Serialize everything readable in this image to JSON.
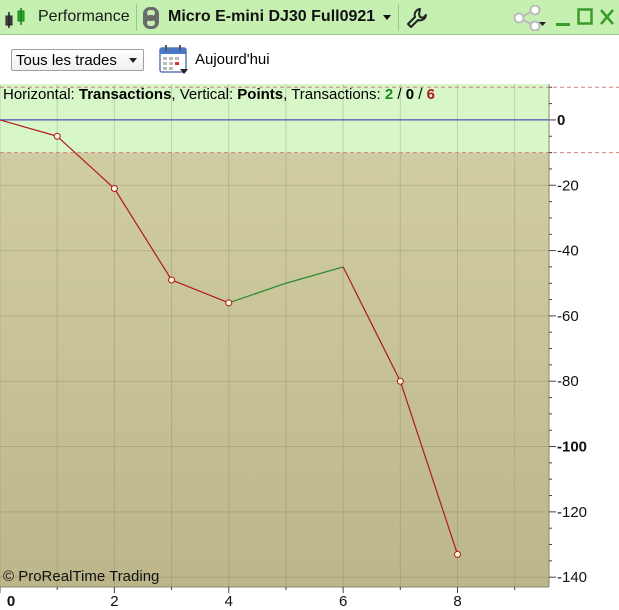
{
  "window": {
    "tab_label": "Performance",
    "instrument": "Micro E-mini DJ30 Full0921",
    "icons": [
      "candlestick-icon",
      "link-icon",
      "wrench-icon",
      "share-icon",
      "minimize-icon",
      "maximize-icon",
      "close-icon"
    ]
  },
  "toolbar": {
    "trade_filter": "Tous les trades",
    "period_label": "Aujourd'hui",
    "calendar_icon": "calendar-icon"
  },
  "header": {
    "horizontal_prefix": "Horizontal: ",
    "horizontal_value": "Transactions",
    "vertical_prefix": ", Vertical: ",
    "vertical_value": "Points",
    "transactions_prefix": ", Transactions: ",
    "wins": "2",
    "sep1": " / ",
    "neutral": "0",
    "sep2": " / ",
    "losses": "6"
  },
  "footer": {
    "copyright": "© ProRealTime Trading"
  },
  "colors": {
    "accent": "#c6efb2",
    "positive_zone": "#d8f7c8",
    "chart_bg_top": "#d4d0a6",
    "chart_bg_bottom": "#bcb68a",
    "zero_line": "#3030c0",
    "loss_line": "#b01a1a",
    "win_line": "#2a8a2a"
  },
  "chart_data": {
    "type": "line",
    "x": [
      0,
      1,
      2,
      3,
      4,
      5,
      6,
      7,
      8
    ],
    "y": [
      0,
      -5,
      -21,
      -49,
      -56,
      -50,
      -45,
      -80,
      -133
    ],
    "segment_colors": [
      "loss",
      "loss",
      "loss",
      "loss",
      "win",
      "win",
      "loss",
      "loss"
    ],
    "markers_at": [
      1,
      2,
      3,
      4,
      7,
      8
    ],
    "xticks": [
      "0",
      "2",
      "4",
      "6",
      "8"
    ],
    "xtick_values": [
      0,
      2,
      4,
      6,
      8
    ],
    "yticks": [
      "0",
      "-20",
      "-40",
      "-60",
      "-80",
      "-100",
      "-120",
      "-140"
    ],
    "ytick_values": [
      0,
      -20,
      -40,
      -60,
      -80,
      -100,
      -120,
      -140
    ],
    "bold_yticks": [
      "0",
      "-100"
    ],
    "xlim": [
      0,
      9.6
    ],
    "ylim": [
      -143,
      11
    ],
    "positive_zone_top": 10,
    "positive_zone_bottom": -10,
    "grid": true,
    "xlabel": "Transactions",
    "ylabel": "Points"
  }
}
